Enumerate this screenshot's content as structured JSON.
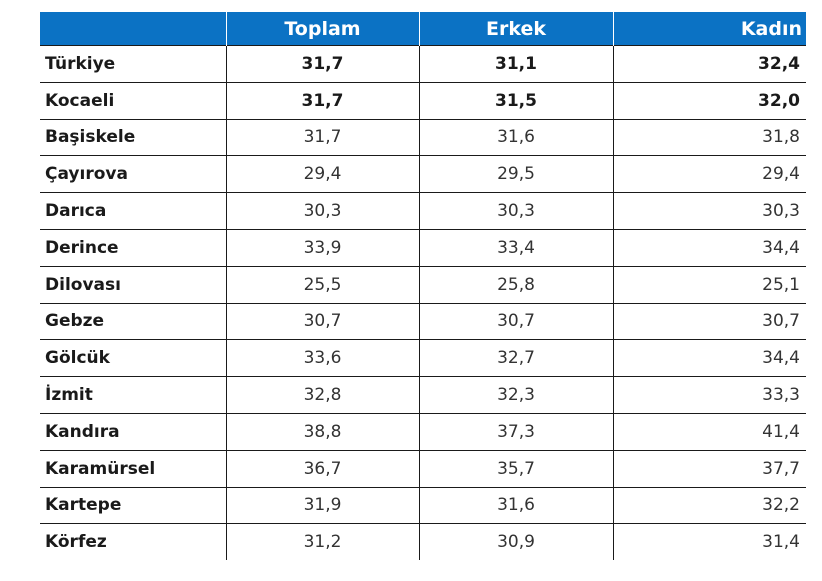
{
  "table": {
    "headers": [
      "",
      "Toplam",
      "Erkek",
      "Kadın"
    ],
    "rows": [
      {
        "name": "Türkiye",
        "toplam": "31,7",
        "erkek": "31,1",
        "kadin": "32,4",
        "bold": true
      },
      {
        "name": "Kocaeli",
        "toplam": "31,7",
        "erkek": "31,5",
        "kadin": "32,0",
        "bold": true
      },
      {
        "name": "Başiskele",
        "toplam": "31,7",
        "erkek": "31,6",
        "kadin": "31,8",
        "bold": false
      },
      {
        "name": "Çayırova",
        "toplam": "29,4",
        "erkek": "29,5",
        "kadin": "29,4",
        "bold": false
      },
      {
        "name": "Darıca",
        "toplam": "30,3",
        "erkek": "30,3",
        "kadin": "30,3",
        "bold": false
      },
      {
        "name": "Derince",
        "toplam": "33,9",
        "erkek": "33,4",
        "kadin": "34,4",
        "bold": false
      },
      {
        "name": "Dilovası",
        "toplam": "25,5",
        "erkek": "25,8",
        "kadin": "25,1",
        "bold": false
      },
      {
        "name": "Gebze",
        "toplam": "30,7",
        "erkek": "30,7",
        "kadin": "30,7",
        "bold": false
      },
      {
        "name": "Gölcük",
        "toplam": "33,6",
        "erkek": "32,7",
        "kadin": "34,4",
        "bold": false
      },
      {
        "name": "İzmit",
        "toplam": "32,8",
        "erkek": "32,3",
        "kadin": "33,3",
        "bold": false
      },
      {
        "name": "Kandıra",
        "toplam": "38,8",
        "erkek": "37,3",
        "kadin": "41,4",
        "bold": false
      },
      {
        "name": "Karamürsel",
        "toplam": "36,7",
        "erkek": "35,7",
        "kadin": "37,7",
        "bold": false
      },
      {
        "name": "Kartepe",
        "toplam": "31,9",
        "erkek": "31,6",
        "kadin": "32,2",
        "bold": false
      },
      {
        "name": "Körfez",
        "toplam": "31,2",
        "erkek": "30,9",
        "kadin": "31,4",
        "bold": false
      }
    ]
  },
  "colors": {
    "header_bg": "#0b72c4",
    "header_text": "#ffffff",
    "grid": "#1a1a1a"
  }
}
